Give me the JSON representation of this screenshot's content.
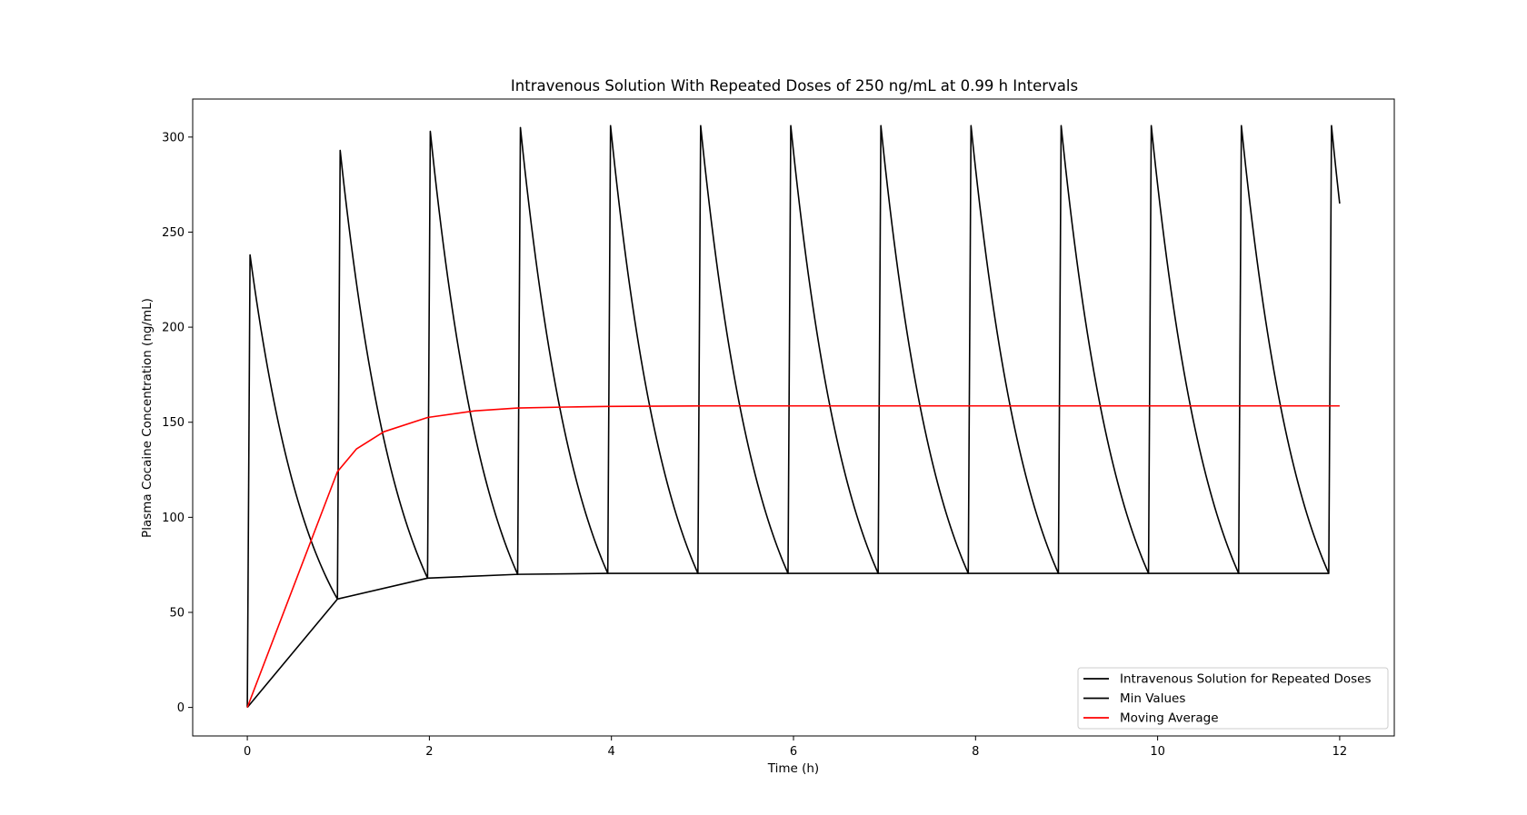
{
  "chart_data": {
    "type": "line",
    "title": "Intravenous Solution With Repeated Doses of 250 ng/mL at 0.99 h Intervals",
    "xlabel": "Time (h)",
    "ylabel": "Plasma Cocaine Concentration (ng/mL)",
    "xlim": [
      -0.6,
      12.6
    ],
    "ylim": [
      -15,
      320
    ],
    "x_ticks": [
      0,
      2,
      4,
      6,
      8,
      10,
      12
    ],
    "y_ticks": [
      0,
      50,
      100,
      150,
      200,
      250,
      300
    ],
    "grid": false,
    "legend_position": "lower right",
    "dose_interval_h": 0.99,
    "t_end_h": 12,
    "series": [
      {
        "name": "Intravenous Solution for Repeated Doses",
        "color": "#000000",
        "peaks": [
          238,
          293,
          303,
          305,
          306,
          306,
          306,
          306,
          306,
          306,
          306,
          306,
          306
        ],
        "troughs": [
          0,
          57,
          68,
          70,
          70.5,
          70.5,
          70.5,
          70.5,
          70.5,
          70.5,
          70.5,
          70.5,
          70.5
        ],
        "final_value": 265
      },
      {
        "name": "Min Values",
        "color": "#000000",
        "x": [
          0,
          0.99,
          1.98,
          2.97,
          3.96,
          4.95,
          5.94,
          6.93,
          7.92,
          8.91,
          9.9,
          10.89,
          11.88
        ],
        "y": [
          0,
          57,
          68,
          70,
          70.5,
          70.5,
          70.5,
          70.5,
          70.5,
          70.5,
          70.5,
          70.5,
          70.5
        ]
      },
      {
        "name": "Moving Average",
        "color": "#ff0000",
        "x": [
          0,
          0.99,
          1.2,
          1.5,
          1.98,
          2.5,
          2.97,
          3.5,
          3.96,
          5,
          6,
          7,
          8,
          9,
          10,
          11,
          12
        ],
        "y": [
          0,
          124,
          136,
          145,
          152.5,
          156,
          157.5,
          158,
          158.3,
          158.6,
          158.6,
          158.6,
          158.6,
          158.6,
          158.6,
          158.6,
          158.6
        ]
      }
    ]
  }
}
